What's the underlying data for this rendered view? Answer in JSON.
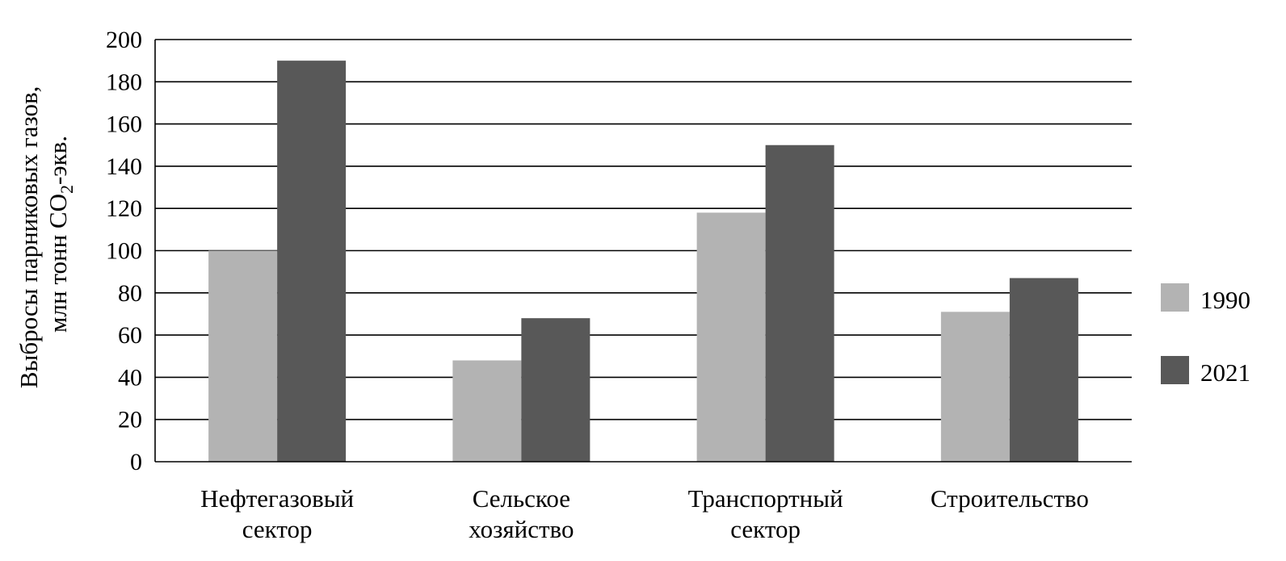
{
  "chart_data": {
    "type": "bar",
    "categories": [
      [
        "Нефтегазовый",
        "сектор"
      ],
      [
        "Сельское",
        "хозяйство"
      ],
      [
        "Транспортный",
        "сектор"
      ],
      [
        "Строительство"
      ]
    ],
    "series": [
      {
        "name": "1990",
        "color": "#b3b3b3",
        "values": [
          100,
          48,
          118,
          71
        ]
      },
      {
        "name": "2021",
        "color": "#585858",
        "values": [
          190,
          68,
          150,
          87
        ]
      }
    ],
    "ylabel_line1": "Выбросы парниковых газов,",
    "ylabel_line2_prefix": "млн тонн CO",
    "ylabel_line2_sub": "2",
    "ylabel_line2_suffix": "-экв.",
    "ylim": [
      0,
      200
    ],
    "yticks": [
      "0",
      "20",
      "40",
      "60",
      "80",
      "100",
      "120",
      "140",
      "160",
      "180",
      "200"
    ],
    "grid": true,
    "legend_position": "right"
  }
}
